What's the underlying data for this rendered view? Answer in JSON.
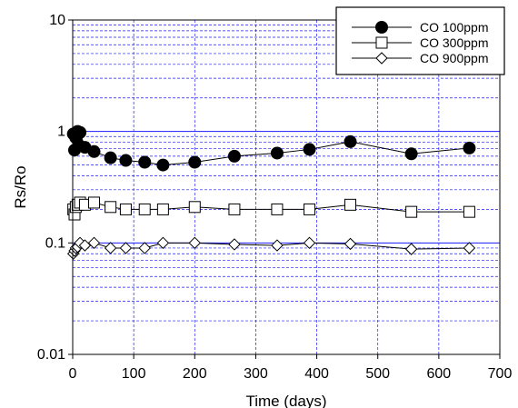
{
  "chart_data": {
    "type": "scatter",
    "xlabel": "Time (days)",
    "ylabel": "Rs/Ro",
    "xlim": [
      0,
      700
    ],
    "ylim": [
      0.01,
      10
    ],
    "yscale": "log",
    "grid": true,
    "legend_position": "top-right",
    "x_ticks": [
      "0",
      "100",
      "200",
      "300",
      "400",
      "500",
      "600",
      "700"
    ],
    "y_ticks": [
      "0.01",
      "0.1",
      "1",
      "10"
    ],
    "series": [
      {
        "name": "CO 100ppm",
        "marker": "filled-circle",
        "points": [
          [
            1,
            0.95
          ],
          [
            3,
            0.68
          ],
          [
            5,
            0.88
          ],
          [
            8,
            1.0
          ],
          [
            10,
            0.75
          ],
          [
            12,
            0.98
          ],
          [
            20,
            0.72
          ],
          [
            35,
            0.66
          ],
          [
            62,
            0.58
          ],
          [
            87,
            0.55
          ],
          [
            118,
            0.53
          ],
          [
            148,
            0.5
          ],
          [
            200,
            0.53
          ],
          [
            265,
            0.6
          ],
          [
            335,
            0.64
          ],
          [
            388,
            0.69
          ],
          [
            455,
            0.81
          ],
          [
            555,
            0.63
          ],
          [
            650,
            0.71
          ]
        ]
      },
      {
        "name": "CO 300ppm",
        "marker": "open-square",
        "points": [
          [
            1,
            0.2
          ],
          [
            3,
            0.18
          ],
          [
            5,
            0.21
          ],
          [
            8,
            0.22
          ],
          [
            12,
            0.23
          ],
          [
            20,
            0.22
          ],
          [
            35,
            0.23
          ],
          [
            62,
            0.21
          ],
          [
            87,
            0.2
          ],
          [
            118,
            0.2
          ],
          [
            148,
            0.2
          ],
          [
            200,
            0.21
          ],
          [
            265,
            0.2
          ],
          [
            335,
            0.2
          ],
          [
            388,
            0.2
          ],
          [
            455,
            0.22
          ],
          [
            555,
            0.19
          ],
          [
            650,
            0.19
          ]
        ]
      },
      {
        "name": "CO 900ppm",
        "marker": "open-diamond",
        "points": [
          [
            1,
            0.08
          ],
          [
            3,
            0.085
          ],
          [
            5,
            0.09
          ],
          [
            8,
            0.092
          ],
          [
            12,
            0.1
          ],
          [
            20,
            0.095
          ],
          [
            35,
            0.1
          ],
          [
            62,
            0.09
          ],
          [
            87,
            0.09
          ],
          [
            118,
            0.09
          ],
          [
            148,
            0.1
          ],
          [
            200,
            0.1
          ],
          [
            265,
            0.097
          ],
          [
            335,
            0.095
          ],
          [
            388,
            0.1
          ],
          [
            455,
            0.098
          ],
          [
            555,
            0.088
          ],
          [
            650,
            0.09
          ]
        ]
      }
    ]
  }
}
